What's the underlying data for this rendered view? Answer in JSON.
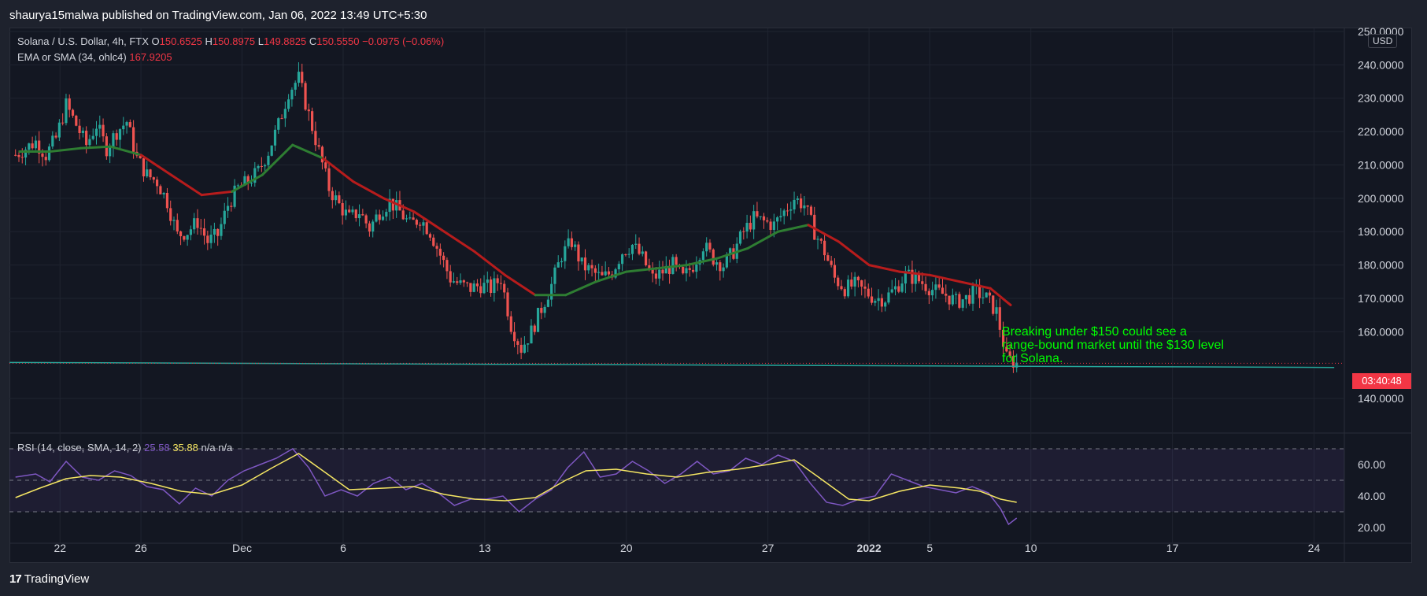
{
  "header": {
    "text": "shaurya15malwa published on TradingView.com, Jan 06, 2022 13:49 UTC+5:30"
  },
  "legend": {
    "symbol": "Solana / U.S. Dollar, 4h, FTX",
    "open_label": "O",
    "open": "150.6525",
    "high_label": "H",
    "high": "150.8975",
    "low_label": "L",
    "low": "149.8825",
    "close_label": "C",
    "close": "150.5550",
    "change": "−0.0975 (−0.06%)",
    "ema_label": "EMA or SMA (34, ohlc4)",
    "ema_value": "167.9205"
  },
  "rsi_legend": {
    "label": "RSI (14, close, SMA, 14, 2)",
    "rsi": "25.58",
    "sma": "35.88",
    "na1": "n/a",
    "na2": "n/a"
  },
  "currency_badge": "USD",
  "countdown": "03:40:48",
  "annotation": "Breaking under $150 could see a\nrange-bound market until the $130 level\nfor Solana.",
  "footer": {
    "brand": "TradingView",
    "mark": "17"
  },
  "colors": {
    "up": "#26a69a",
    "down": "#ef5350",
    "ema_above": "#2e7d32",
    "ema_below": "#b71c1c",
    "rsi_line": "#7e57c2",
    "rsi_sma": "#f5e663",
    "support_line": "#26a69a",
    "annotation": "#00ff00"
  },
  "chart_data": [
    {
      "type": "candlestick",
      "title": "Solana / U.S. Dollar, 4h, FTX",
      "ylim": [
        132,
        250
      ],
      "y_ticks": [
        140,
        160,
        170,
        180,
        190,
        200,
        210,
        220,
        230,
        240,
        250
      ],
      "y_tick_labels": [
        "140.0000",
        "160.0000",
        "170.0000",
        "180.0000",
        "190.0000",
        "200.0000",
        "210.0000",
        "220.0000",
        "230.0000",
        "240.0000",
        "250.0000"
      ],
      "x_ticks": [
        "22",
        "26",
        "Dec",
        "6",
        "13",
        "20",
        "27",
        "2022",
        "5",
        "10",
        "17",
        "24"
      ],
      "x_tick_positions_day": [
        21.5,
        25.5,
        30.5,
        35.5,
        42.5,
        49.5,
        56.5,
        61.5,
        64.5,
        69.5,
        76.5,
        83.5
      ],
      "price_path": [
        [
          19.3,
          213
        ],
        [
          20.3,
          217
        ],
        [
          20.8,
          213
        ],
        [
          21.3,
          218
        ],
        [
          21.8,
          228
        ],
        [
          22.3,
          222
        ],
        [
          22.8,
          216
        ],
        [
          23.3,
          222
        ],
        [
          23.8,
          215
        ],
        [
          24.3,
          220
        ],
        [
          24.8,
          223
        ],
        [
          25.3,
          212
        ],
        [
          25.8,
          207
        ],
        [
          26.3,
          205
        ],
        [
          26.8,
          199
        ],
        [
          27.3,
          189
        ],
        [
          27.8,
          190
        ],
        [
          28.3,
          193
        ],
        [
          28.8,
          187
        ],
        [
          29.3,
          189
        ],
        [
          29.8,
          198
        ],
        [
          30.3,
          203
        ],
        [
          30.8,
          205
        ],
        [
          31.3,
          208
        ],
        [
          31.8,
          214
        ],
        [
          32.3,
          222
        ],
        [
          32.8,
          232
        ],
        [
          33.3,
          236
        ],
        [
          33.8,
          225
        ],
        [
          34.3,
          214
        ],
        [
          34.8,
          203
        ],
        [
          35.3,
          198
        ],
        [
          35.8,
          194
        ],
        [
          36.3,
          196
        ],
        [
          36.8,
          191
        ],
        [
          37.3,
          196
        ],
        [
          37.8,
          199
        ],
        [
          38.3,
          196
        ],
        [
          38.8,
          192
        ],
        [
          39.3,
          194
        ],
        [
          39.8,
          190
        ],
        [
          40.3,
          183
        ],
        [
          40.8,
          176
        ],
        [
          41.3,
          174
        ],
        [
          41.8,
          173
        ],
        [
          42.3,
          174
        ],
        [
          42.8,
          173
        ],
        [
          43.3,
          176
        ],
        [
          43.8,
          162
        ],
        [
          44.3,
          155
        ],
        [
          44.8,
          160
        ],
        [
          45.3,
          167
        ],
        [
          45.8,
          174
        ],
        [
          46.3,
          183
        ],
        [
          46.8,
          187
        ],
        [
          47.3,
          180
        ],
        [
          47.8,
          178
        ],
        [
          48.3,
          176
        ],
        [
          48.8,
          178
        ],
        [
          49.3,
          184
        ],
        [
          49.8,
          186
        ],
        [
          50.3,
          182
        ],
        [
          50.8,
          176
        ],
        [
          51.3,
          178
        ],
        [
          51.8,
          180
        ],
        [
          52.3,
          176
        ],
        [
          52.8,
          180
        ],
        [
          53.3,
          186
        ],
        [
          53.8,
          182
        ],
        [
          54.3,
          180
        ],
        [
          54.8,
          184
        ],
        [
          55.3,
          190
        ],
        [
          55.8,
          194
        ],
        [
          56.3,
          193
        ],
        [
          56.8,
          192
        ],
        [
          57.3,
          196
        ],
        [
          57.8,
          200
        ],
        [
          58.3,
          198
        ],
        [
          58.8,
          190
        ],
        [
          59.3,
          184
        ],
        [
          59.8,
          176
        ],
        [
          60.3,
          173
        ],
        [
          60.8,
          174
        ],
        [
          61.3,
          172
        ],
        [
          61.8,
          170
        ],
        [
          62.3,
          170
        ],
        [
          62.8,
          173
        ],
        [
          63.3,
          177
        ],
        [
          63.8,
          176
        ],
        [
          64.3,
          174
        ],
        [
          64.8,
          172
        ],
        [
          65.3,
          171
        ],
        [
          65.8,
          169
        ],
        [
          66.3,
          170
        ],
        [
          66.8,
          172
        ],
        [
          67.3,
          170
        ],
        [
          67.8,
          166
        ],
        [
          68.3,
          152
        ],
        [
          68.8,
          150.5
        ]
      ],
      "ema_path": [
        [
          19.5,
          214
        ],
        [
          21.0,
          214
        ],
        [
          22.5,
          215
        ],
        [
          24.0,
          215.5
        ],
        [
          25.5,
          213
        ],
        [
          27.0,
          207
        ],
        [
          28.5,
          201
        ],
        [
          30.0,
          202
        ],
        [
          31.5,
          207
        ],
        [
          33.0,
          216
        ],
        [
          34.5,
          212
        ],
        [
          36.0,
          205
        ],
        [
          37.5,
          200
        ],
        [
          39.0,
          196
        ],
        [
          40.5,
          190
        ],
        [
          42.0,
          184
        ],
        [
          43.5,
          177
        ],
        [
          45.0,
          171
        ],
        [
          46.5,
          171
        ],
        [
          48.0,
          175
        ],
        [
          49.5,
          178
        ],
        [
          51.0,
          179
        ],
        [
          52.5,
          180
        ],
        [
          54.0,
          182
        ],
        [
          55.5,
          185
        ],
        [
          57.0,
          190
        ],
        [
          58.5,
          192
        ],
        [
          60.0,
          187
        ],
        [
          61.5,
          180
        ],
        [
          63.0,
          178
        ],
        [
          64.5,
          177
        ],
        [
          66.0,
          175
        ],
        [
          67.5,
          173
        ],
        [
          68.5,
          168
        ]
      ],
      "support_line": [
        [
          19.0,
          150.8
        ],
        [
          84.5,
          149.3
        ]
      ],
      "current_price": 150.555
    },
    {
      "type": "line",
      "title": "RSI (14, close, SMA, 14, 2)",
      "ylim": [
        15,
        75
      ],
      "y_ticks": [
        20,
        40,
        60
      ],
      "y_tick_labels": [
        "20.00",
        "40.00",
        "60.00"
      ],
      "bands": [
        30,
        50,
        70
      ],
      "series": [
        {
          "name": "RSI",
          "values": [
            [
              19.3,
              52
            ],
            [
              20.3,
              54
            ],
            [
              21.0,
              49
            ],
            [
              21.8,
              62
            ],
            [
              22.6,
              52
            ],
            [
              23.4,
              50
            ],
            [
              24.2,
              56
            ],
            [
              25.0,
              53
            ],
            [
              25.8,
              46
            ],
            [
              26.6,
              44
            ],
            [
              27.4,
              35
            ],
            [
              28.2,
              45
            ],
            [
              29.0,
              40
            ],
            [
              29.8,
              50
            ],
            [
              30.6,
              56
            ],
            [
              31.4,
              60
            ],
            [
              32.2,
              64
            ],
            [
              33.0,
              70
            ],
            [
              33.8,
              58
            ],
            [
              34.6,
              40
            ],
            [
              35.4,
              44
            ],
            [
              36.2,
              40
            ],
            [
              37.0,
              48
            ],
            [
              37.8,
              52
            ],
            [
              38.6,
              44
            ],
            [
              39.4,
              48
            ],
            [
              40.2,
              42
            ],
            [
              41.0,
              34
            ],
            [
              41.8,
              38
            ],
            [
              42.6,
              38
            ],
            [
              43.4,
              40
            ],
            [
              44.2,
              30
            ],
            [
              45.0,
              38
            ],
            [
              45.8,
              44
            ],
            [
              46.6,
              58
            ],
            [
              47.4,
              68
            ],
            [
              48.2,
              52
            ],
            [
              49.0,
              54
            ],
            [
              49.8,
              62
            ],
            [
              50.6,
              56
            ],
            [
              51.4,
              48
            ],
            [
              52.2,
              54
            ],
            [
              53.0,
              62
            ],
            [
              53.8,
              54
            ],
            [
              54.6,
              56
            ],
            [
              55.4,
              64
            ],
            [
              56.2,
              60
            ],
            [
              57.0,
              66
            ],
            [
              57.8,
              62
            ],
            [
              58.6,
              48
            ],
            [
              59.4,
              36
            ],
            [
              60.2,
              34
            ],
            [
              61.0,
              38
            ],
            [
              61.8,
              40
            ],
            [
              62.6,
              54
            ],
            [
              63.4,
              50
            ],
            [
              64.2,
              46
            ],
            [
              65.0,
              44
            ],
            [
              65.8,
              42
            ],
            [
              66.6,
              46
            ],
            [
              67.4,
              42
            ],
            [
              68.0,
              32
            ],
            [
              68.4,
              22
            ],
            [
              68.8,
              26
            ]
          ]
        },
        {
          "name": "RSI-based MA",
          "values": [
            [
              19.3,
              39
            ],
            [
              20.5,
              45
            ],
            [
              21.8,
              51
            ],
            [
              23.0,
              53
            ],
            [
              24.5,
              52
            ],
            [
              26.0,
              48
            ],
            [
              27.5,
              43
            ],
            [
              29.0,
              41
            ],
            [
              30.5,
              47
            ],
            [
              32.0,
              58
            ],
            [
              33.3,
              67
            ],
            [
              34.5,
              56
            ],
            [
              35.8,
              44
            ],
            [
              37.5,
              45
            ],
            [
              39.0,
              46
            ],
            [
              40.5,
              41
            ],
            [
              42.0,
              38
            ],
            [
              43.5,
              37
            ],
            [
              45.0,
              39
            ],
            [
              46.5,
              50
            ],
            [
              47.5,
              56
            ],
            [
              49.0,
              57
            ],
            [
              50.5,
              54
            ],
            [
              52.0,
              52
            ],
            [
              53.5,
              55
            ],
            [
              55.0,
              57
            ],
            [
              56.5,
              60
            ],
            [
              57.8,
              63
            ],
            [
              59.0,
              52
            ],
            [
              60.5,
              38
            ],
            [
              61.5,
              37
            ],
            [
              63.0,
              43
            ],
            [
              64.5,
              47
            ],
            [
              66.0,
              45
            ],
            [
              67.0,
              43
            ],
            [
              68.0,
              38
            ],
            [
              68.8,
              36
            ]
          ]
        }
      ],
      "current_value": 25.58,
      "current_sma": 35.88
    }
  ]
}
